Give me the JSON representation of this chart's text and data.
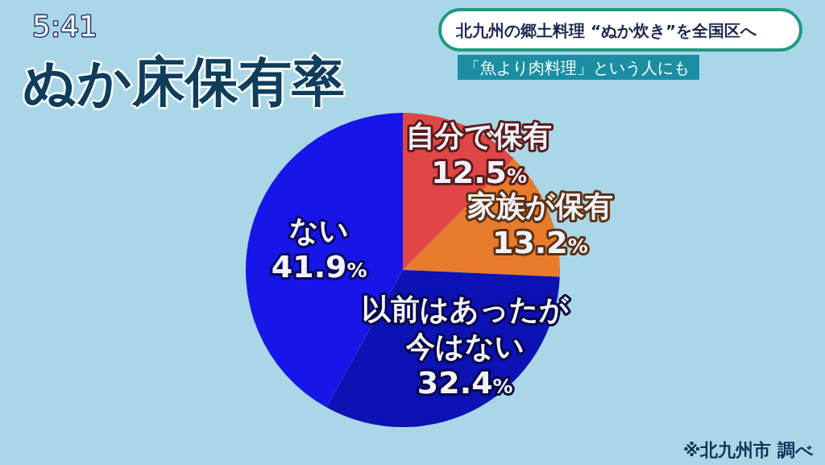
{
  "chart_data": {
    "type": "pie",
    "title": "ぬか床保有率",
    "subtitle": "北九州の郷土料理 “ぬか炊き”を全国区へ",
    "categories": [
      "自分で保有",
      "家族が保有",
      "以前はあったが今はない",
      "ない"
    ],
    "values": [
      12.5,
      13.2,
      32.4,
      41.9
    ],
    "colors": [
      "#e04646",
      "#e87a2c",
      "#0c12b4",
      "#1616e8"
    ],
    "value_labels": [
      "12.5%",
      "13.2%",
      "32.4%",
      "41.9%"
    ],
    "annotations": [
      "5:41",
      "「魚より肉料理」という人にも",
      "※北九州市 調べ"
    ]
  }
}
